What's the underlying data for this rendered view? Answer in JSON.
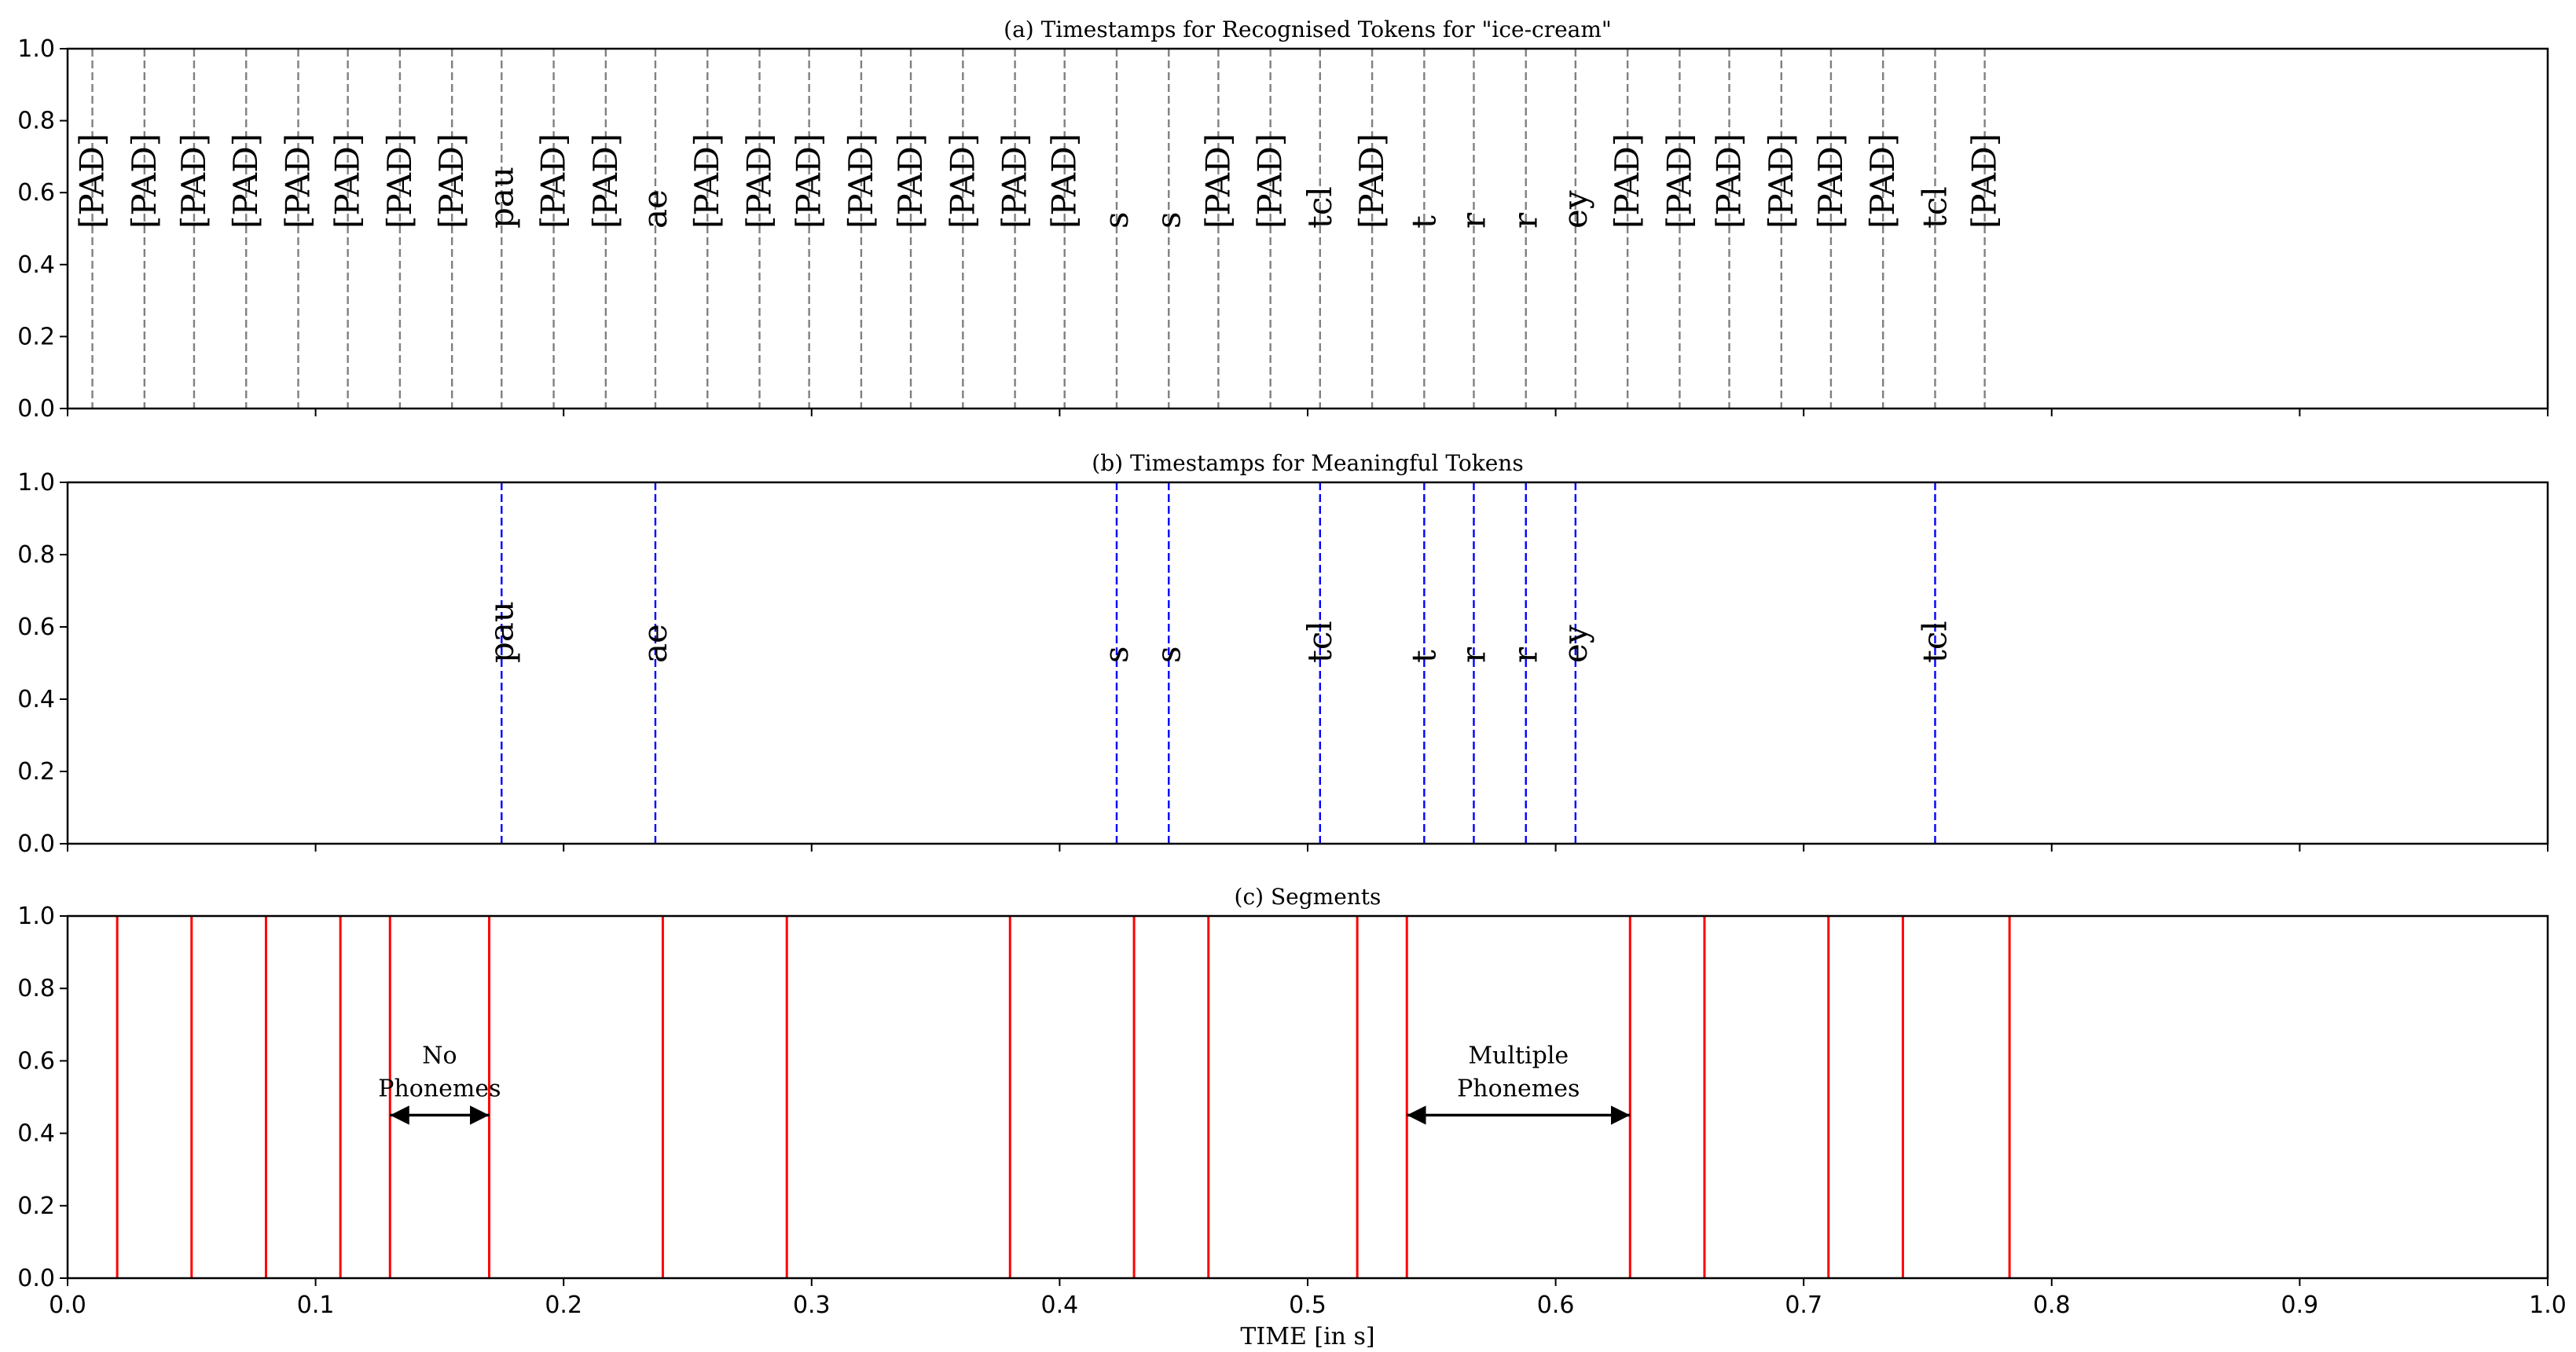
{
  "chart_data": [
    {
      "type": "timestamp-lines",
      "title": "(a) Timestamps for Recognised Tokens for \"ice-cream\"",
      "xlim": [
        0.0,
        1.0
      ],
      "ylim": [
        0.0,
        1.0
      ],
      "line_style": "dashed",
      "line_color": "#808080",
      "label_y": 0.5,
      "tokens": [
        {
          "label": "[PAD]",
          "time": 0.01
        },
        {
          "label": "[PAD]",
          "time": 0.031
        },
        {
          "label": "[PAD]",
          "time": 0.051
        },
        {
          "label": "[PAD]",
          "time": 0.072
        },
        {
          "label": "[PAD]",
          "time": 0.093
        },
        {
          "label": "[PAD]",
          "time": 0.113
        },
        {
          "label": "[PAD]",
          "time": 0.134
        },
        {
          "label": "[PAD]",
          "time": 0.155
        },
        {
          "label": "pau",
          "time": 0.175
        },
        {
          "label": "[PAD]",
          "time": 0.196
        },
        {
          "label": "[PAD]",
          "time": 0.217
        },
        {
          "label": "ae",
          "time": 0.237
        },
        {
          "label": "[PAD]",
          "time": 0.258
        },
        {
          "label": "[PAD]",
          "time": 0.279
        },
        {
          "label": "[PAD]",
          "time": 0.299
        },
        {
          "label": "[PAD]",
          "time": 0.32
        },
        {
          "label": "[PAD]",
          "time": 0.34
        },
        {
          "label": "[PAD]",
          "time": 0.361
        },
        {
          "label": "[PAD]",
          "time": 0.382
        },
        {
          "label": "[PAD]",
          "time": 0.402
        },
        {
          "label": "s",
          "time": 0.423
        },
        {
          "label": "s",
          "time": 0.444
        },
        {
          "label": "[PAD]",
          "time": 0.464
        },
        {
          "label": "[PAD]",
          "time": 0.485
        },
        {
          "label": "tcl",
          "time": 0.505
        },
        {
          "label": "[PAD]",
          "time": 0.526
        },
        {
          "label": "t",
          "time": 0.547
        },
        {
          "label": "r",
          "time": 0.567
        },
        {
          "label": "r",
          "time": 0.588
        },
        {
          "label": "ey",
          "time": 0.608
        },
        {
          "label": "[PAD]",
          "time": 0.629
        },
        {
          "label": "[PAD]",
          "time": 0.65
        },
        {
          "label": "[PAD]",
          "time": 0.67
        },
        {
          "label": "[PAD]",
          "time": 0.691
        },
        {
          "label": "[PAD]",
          "time": 0.711
        },
        {
          "label": "[PAD]",
          "time": 0.732
        },
        {
          "label": "tcl",
          "time": 0.753
        },
        {
          "label": "[PAD]",
          "time": 0.773
        }
      ],
      "yticks": [
        "0.0",
        "0.2",
        "0.4",
        "0.6",
        "0.8",
        "1.0"
      ]
    },
    {
      "type": "timestamp-lines",
      "title": "(b) Timestamps for Meaningful Tokens",
      "xlim": [
        0.0,
        1.0
      ],
      "ylim": [
        0.0,
        1.0
      ],
      "line_style": "dashed",
      "line_color": "#0000ff",
      "label_y": 0.5,
      "tokens": [
        {
          "label": "pau",
          "time": 0.175
        },
        {
          "label": "ae",
          "time": 0.237
        },
        {
          "label": "s",
          "time": 0.423
        },
        {
          "label": "s",
          "time": 0.444
        },
        {
          "label": "tcl",
          "time": 0.505
        },
        {
          "label": "t",
          "time": 0.547
        },
        {
          "label": "r",
          "time": 0.567
        },
        {
          "label": "r",
          "time": 0.588
        },
        {
          "label": "ey",
          "time": 0.608
        },
        {
          "label": "tcl",
          "time": 0.753
        }
      ],
      "yticks": [
        "0.0",
        "0.2",
        "0.4",
        "0.6",
        "0.8",
        "1.0"
      ]
    },
    {
      "type": "segment-lines",
      "title": "(c) Segments",
      "xlim": [
        0.0,
        1.0
      ],
      "ylim": [
        0.0,
        1.0
      ],
      "line_style": "solid",
      "line_color": "#ff0000",
      "boundaries": [
        0.02,
        0.05,
        0.08,
        0.11,
        0.13,
        0.17,
        0.24,
        0.29,
        0.38,
        0.43,
        0.46,
        0.52,
        0.54,
        0.63,
        0.66,
        0.71,
        0.74,
        0.783
      ],
      "annotations": [
        {
          "lines": [
            "No",
            "Phonemes"
          ],
          "x_start": 0.13,
          "x_end": 0.17,
          "y": 0.45
        },
        {
          "lines": [
            "Multiple",
            "Phonemes"
          ],
          "x_start": 0.54,
          "x_end": 0.63,
          "y": 0.45
        }
      ],
      "xlabel": "TIME [in s]",
      "xticks": [
        "0.0",
        "0.1",
        "0.2",
        "0.3",
        "0.4",
        "0.5",
        "0.6",
        "0.7",
        "0.8",
        "0.9",
        "1.0"
      ],
      "yticks": [
        "0.0",
        "0.2",
        "0.4",
        "0.6",
        "0.8",
        "1.0"
      ]
    }
  ]
}
